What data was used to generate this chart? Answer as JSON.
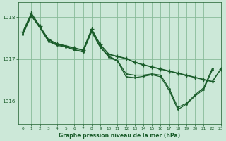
{
  "background_color": "#cce8d8",
  "grid_color": "#88bb99",
  "line_color": "#1a5c2a",
  "title": "Graphe pression niveau de la mer (hPa)",
  "xlim": [
    -0.5,
    23
  ],
  "ylim": [
    1015.45,
    1018.35
  ],
  "yticks": [
    1016,
    1017,
    1018
  ],
  "xticks": [
    0,
    1,
    2,
    3,
    4,
    5,
    6,
    7,
    8,
    9,
    10,
    11,
    12,
    13,
    14,
    15,
    16,
    17,
    18,
    19,
    20,
    21,
    22,
    23
  ],
  "series": [
    {
      "x": [
        0,
        1,
        2,
        3,
        4,
        5,
        6,
        7,
        8,
        9,
        10,
        11,
        12,
        13,
        14,
        15,
        16,
        17,
        18,
        19,
        20,
        21,
        22,
        23
      ],
      "y": [
        1017.65,
        1018.1,
        1017.78,
        1017.47,
        1017.37,
        1017.32,
        1017.27,
        1017.22,
        1017.72,
        1017.35,
        1017.12,
        1017.07,
        1017.02,
        1016.93,
        1016.87,
        1016.82,
        1016.77,
        1016.72,
        1016.67,
        1016.62,
        1016.57,
        1016.52,
        1016.47,
        1016.77
      ],
      "marker": "+",
      "ms": 4,
      "lw": 0.9
    },
    {
      "x": [
        0,
        1,
        2,
        3,
        4,
        5,
        6,
        7,
        8,
        9,
        10,
        11,
        12,
        13,
        14,
        15,
        16,
        17,
        18,
        19,
        20,
        21,
        22,
        23
      ],
      "y": [
        1017.63,
        1018.08,
        1017.77,
        1017.46,
        1017.36,
        1017.31,
        1017.26,
        1017.21,
        1017.71,
        1017.34,
        1017.11,
        1017.06,
        1017.01,
        1016.92,
        1016.86,
        1016.81,
        1016.76,
        1016.71,
        1016.66,
        1016.61,
        1016.56,
        1016.51,
        1016.46,
        1016.76
      ],
      "marker": "o",
      "ms": 1.5,
      "lw": 0.8
    },
    {
      "x": [
        0,
        1,
        2,
        3,
        4,
        5,
        6,
        7,
        8,
        9,
        10,
        11,
        12,
        13,
        14,
        15,
        16,
        17,
        18,
        19,
        20,
        21,
        22
      ],
      "y": [
        1017.6,
        1018.05,
        1017.75,
        1017.43,
        1017.35,
        1017.3,
        1017.23,
        1017.18,
        1017.68,
        1017.3,
        1017.07,
        1016.97,
        1016.65,
        1016.62,
        1016.62,
        1016.65,
        1016.62,
        1016.3,
        1015.85,
        1015.95,
        1016.15,
        1016.32,
        1016.78
      ],
      "marker": "o",
      "ms": 1.5,
      "lw": 0.9
    },
    {
      "x": [
        0,
        1,
        2,
        3,
        4,
        5,
        6,
        7,
        8,
        9,
        10,
        11,
        12,
        13,
        14,
        15,
        16,
        17,
        18,
        19,
        20,
        21,
        22
      ],
      "y": [
        1017.58,
        1018.03,
        1017.74,
        1017.42,
        1017.33,
        1017.29,
        1017.22,
        1017.17,
        1017.65,
        1017.28,
        1017.05,
        1016.95,
        1016.58,
        1016.56,
        1016.59,
        1016.63,
        1016.58,
        1016.25,
        1015.8,
        1015.93,
        1016.12,
        1016.28,
        1016.74
      ],
      "marker": "o",
      "ms": 1.5,
      "lw": 0.9
    }
  ]
}
